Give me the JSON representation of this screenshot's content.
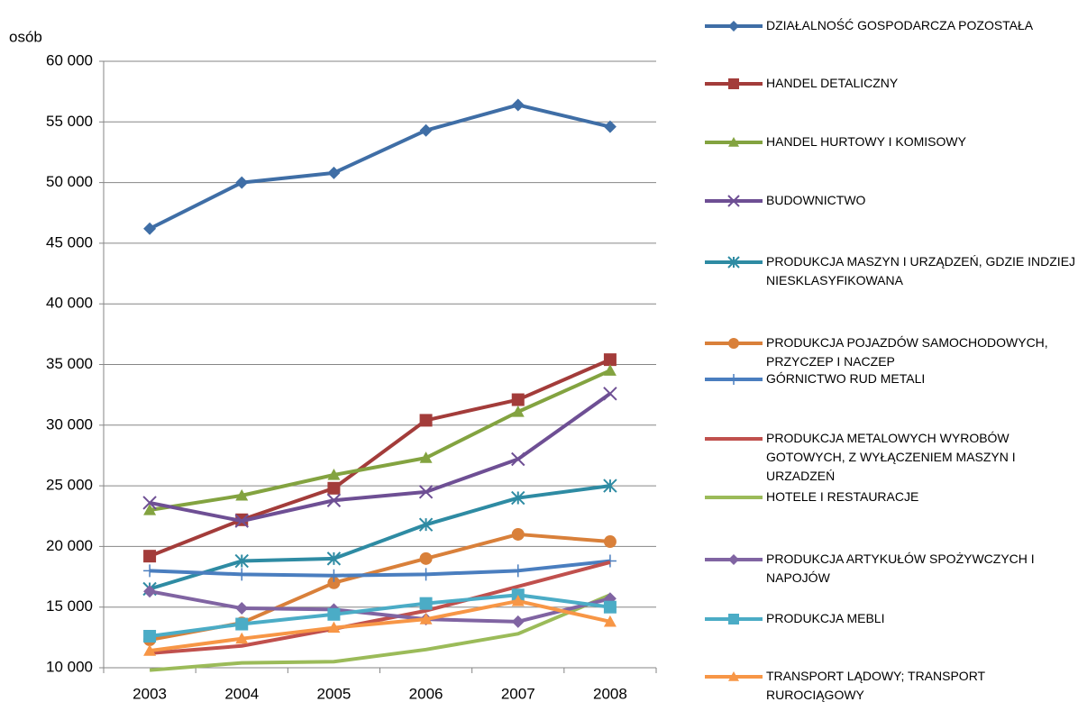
{
  "chart_data": {
    "type": "line",
    "y_label": "osób",
    "categories": [
      "2003",
      "2004",
      "2005",
      "2006",
      "2007",
      "2008"
    ],
    "ylim": [
      10000,
      60000
    ],
    "yticks": [
      {
        "value": 10000,
        "label": "10 000"
      },
      {
        "value": 15000,
        "label": "15 000"
      },
      {
        "value": 20000,
        "label": "20 000"
      },
      {
        "value": 25000,
        "label": "25 000"
      },
      {
        "value": 30000,
        "label": "30 000"
      },
      {
        "value": 35000,
        "label": "35 000"
      },
      {
        "value": 40000,
        "label": "40 000"
      },
      {
        "value": 45000,
        "label": "45 000"
      },
      {
        "value": 50000,
        "label": "50 000"
      },
      {
        "value": 55000,
        "label": "55 000"
      },
      {
        "value": 60000,
        "label": "60 000"
      }
    ],
    "grid": true,
    "legend": "right",
    "series": [
      {
        "name": "DZIAŁALNOŚĆ GOSPODARCZA POZOSTAŁA",
        "color": "#3f6ea6",
        "marker": "diamond",
        "values": [
          46200,
          50000,
          50800,
          54300,
          56400,
          54600
        ]
      },
      {
        "name": "HANDEL DETALICZNY",
        "color": "#a33c3a",
        "marker": "square",
        "values": [
          19200,
          22200,
          24800,
          30400,
          32100,
          35400
        ]
      },
      {
        "name": "HANDEL HURTOWY I KOMISOWY",
        "color": "#83a340",
        "marker": "triangle",
        "values": [
          23000,
          24200,
          25900,
          27300,
          31100,
          34500
        ]
      },
      {
        "name": "BUDOWNICTWO",
        "color": "#6e4f94",
        "marker": "x",
        "values": [
          23600,
          22100,
          23800,
          24500,
          27200,
          32600
        ]
      },
      {
        "name": "PRODUKCJA MASZYN I URZĄDZEŃ, GDZIE INDZIEJ NIESKLASYFIKOWANA",
        "color": "#2e8ba3",
        "marker": "star",
        "values": [
          16500,
          18800,
          19000,
          21800,
          24000,
          25000
        ]
      },
      {
        "name": "PRODUKCJA POJAZDÓW SAMOCHODOWYCH, PRZYCZEP I NACZEP",
        "color": "#d9803a",
        "marker": "circle",
        "values": [
          12300,
          13700,
          17000,
          19000,
          21000,
          20400
        ]
      },
      {
        "name": "GÓRNICTWO RUD METALI",
        "color": "#4a7ebf",
        "marker": "plus",
        "values": [
          18000,
          17700,
          17600,
          17700,
          18000,
          18800
        ]
      },
      {
        "name": "PRODUKCJA METALOWYCH WYROBÓW GOTOWYCH, Z WYŁĄCZENIEM MASZYN I URZADZEŃ",
        "color": "#c0504d",
        "marker": "none",
        "values": [
          11200,
          11800,
          13200,
          14700,
          16700,
          18700
        ]
      },
      {
        "name": "HOTELE I RESTAURACJE",
        "color": "#9bbb59",
        "marker": "none",
        "values": [
          9800,
          10400,
          10500,
          11500,
          12800,
          16000
        ]
      },
      {
        "name": "PRODUKCJA ARTYKUŁÓW SPOŻYWCZYCH I NAPOJÓW",
        "color": "#8064a2",
        "marker": "diamond",
        "values": [
          16300,
          14900,
          14800,
          14000,
          13800,
          15700
        ]
      },
      {
        "name": "PRODUKCJA MEBLI",
        "color": "#4bacc6",
        "marker": "square",
        "values": [
          12600,
          13600,
          14400,
          15300,
          16000,
          15000
        ]
      },
      {
        "name": "TRANSPORT LĄDOWY; TRANSPORT RUROCIĄGOWY",
        "color": "#f79646",
        "marker": "triangle",
        "values": [
          11400,
          12400,
          13300,
          14000,
          15500,
          13800
        ]
      }
    ]
  }
}
